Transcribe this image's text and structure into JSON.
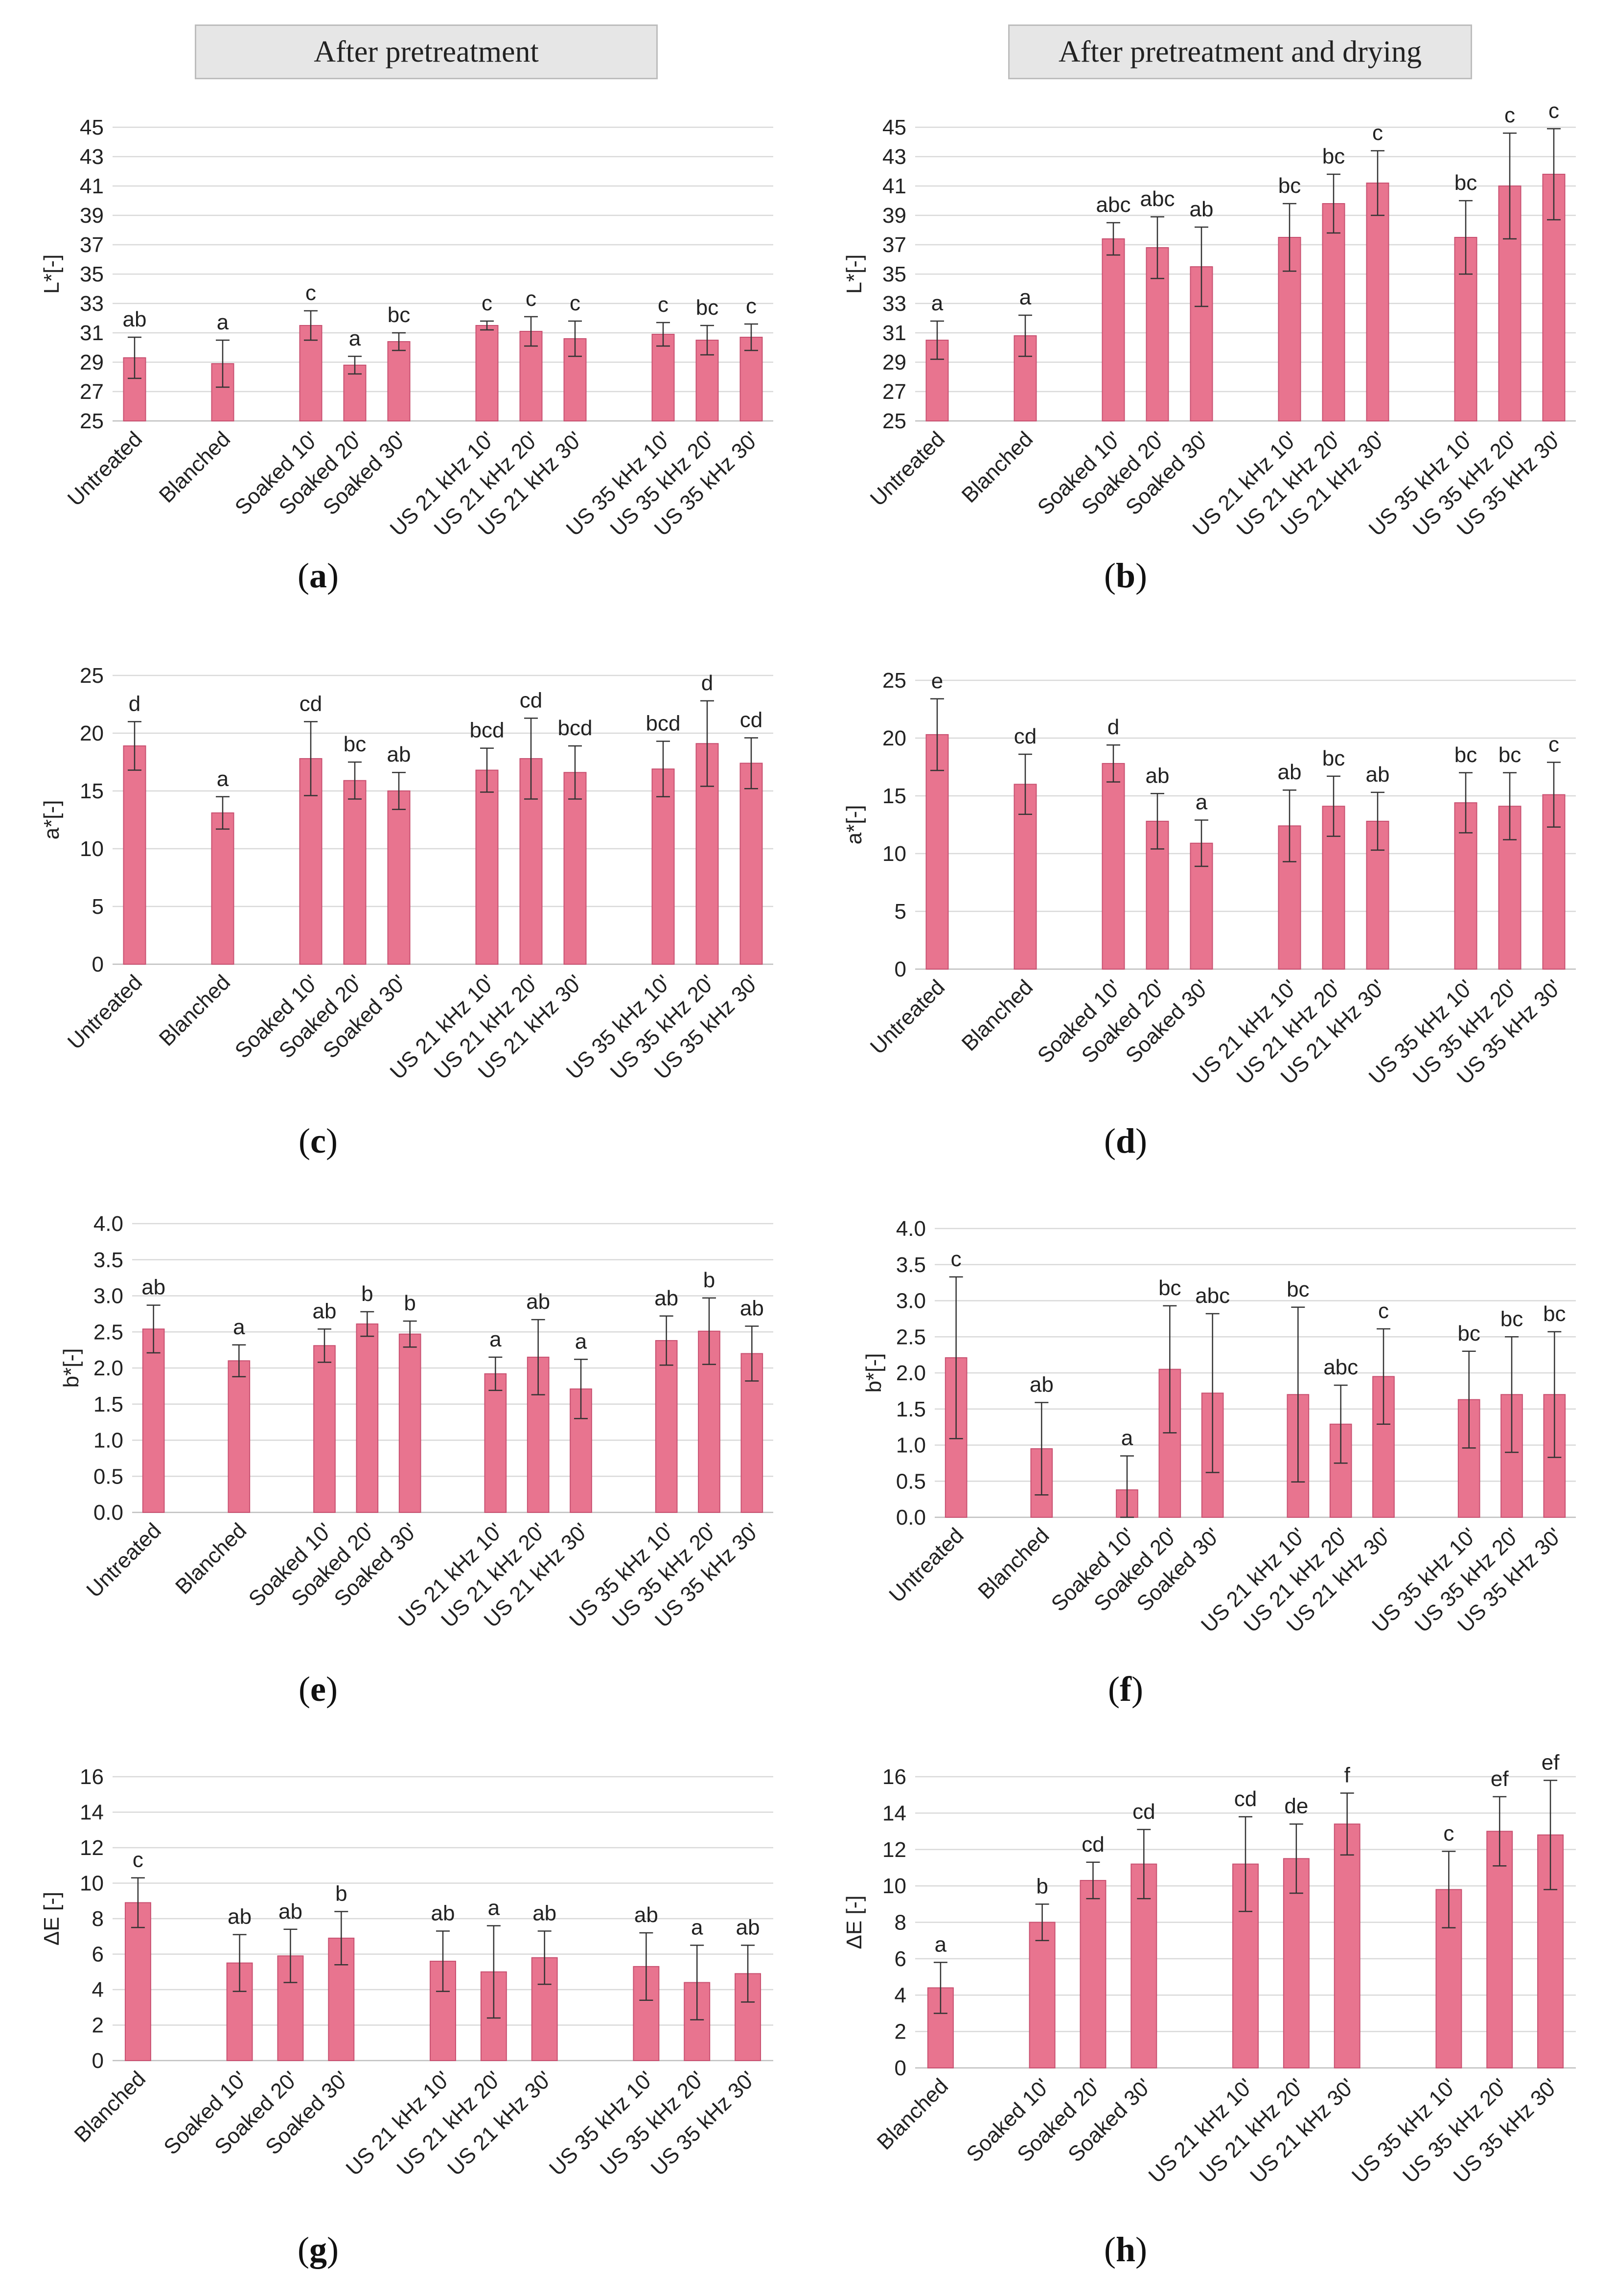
{
  "headers": {
    "left": "After pretreatment",
    "right": "After pretreatment and drying"
  },
  "style": {
    "bar_color": "#e8748f",
    "bar_stroke": "#c85070",
    "grid_color": "#d9d9d9",
    "axis_color": "#bfbfbf"
  },
  "chart_data": [
    {
      "id": "a",
      "type": "bar",
      "panel_label": "a",
      "ylabel": "L*[-]",
      "ylim": [
        25,
        45
      ],
      "yticks": [
        25,
        27,
        29,
        31,
        33,
        35,
        37,
        39,
        41,
        43,
        45
      ],
      "categories": [
        "Untreated",
        "Blanched",
        "Soaked 10'",
        "Soaked 20'",
        "Soaked 30'",
        "US 21 kHz 10'",
        "US 21 kHz 20'",
        "US 21 kHz 30'",
        "US 35 kHz 10'",
        "US 35 kHz 20'",
        "US 35 kHz 30'"
      ],
      "groups": [
        [
          0
        ],
        [
          1
        ],
        [
          2,
          3,
          4
        ],
        [
          5,
          6,
          7
        ],
        [
          8,
          9,
          10
        ]
      ],
      "values": [
        29.3,
        28.9,
        31.5,
        28.8,
        30.4,
        31.5,
        31.1,
        30.6,
        30.9,
        30.5,
        30.7
      ],
      "errors": [
        1.4,
        1.6,
        1.0,
        0.6,
        0.6,
        0.3,
        1.0,
        1.2,
        0.8,
        1.0,
        0.9
      ],
      "letters": [
        "ab",
        "a",
        "c",
        "a",
        "bc",
        "c",
        "c",
        "c",
        "c",
        "bc",
        "c"
      ]
    },
    {
      "id": "b",
      "type": "bar",
      "panel_label": "b",
      "ylabel": "L*[-]",
      "ylim": [
        25,
        45
      ],
      "yticks": [
        25,
        27,
        29,
        31,
        33,
        35,
        37,
        39,
        41,
        43,
        45
      ],
      "categories": [
        "Untreated",
        "Blanched",
        "Soaked 10'",
        "Soaked 20'",
        "Soaked 30'",
        "US 21 kHz 10'",
        "US 21 kHz 20'",
        "US 21 kHz 30'",
        "US 35 kHz 10'",
        "US 35 kHz 20'",
        "US 35 kHz 30'"
      ],
      "groups": [
        [
          0
        ],
        [
          1
        ],
        [
          2,
          3,
          4
        ],
        [
          5,
          6,
          7
        ],
        [
          8,
          9,
          10
        ]
      ],
      "values": [
        30.5,
        30.8,
        37.4,
        36.8,
        35.5,
        37.5,
        39.8,
        41.2,
        37.5,
        41.0,
        41.8
      ],
      "errors": [
        1.3,
        1.4,
        1.1,
        2.1,
        2.7,
        2.3,
        2.0,
        2.2,
        2.5,
        3.6,
        3.1
      ],
      "letters": [
        "a",
        "a",
        "abc",
        "abc",
        "ab",
        "bc",
        "bc",
        "c",
        "bc",
        "c",
        "c"
      ]
    },
    {
      "id": "c",
      "type": "bar",
      "panel_label": "c",
      "ylabel": "a*[-]",
      "ylim": [
        0,
        25
      ],
      "yticks": [
        0,
        5,
        10,
        15,
        20,
        25
      ],
      "categories": [
        "Untreated",
        "Blanched",
        "Soaked 10'",
        "Soaked 20'",
        "Soaked 30'",
        "US 21 kHz 10'",
        "US 21 kHz 20'",
        "US 21 kHz 30'",
        "US 35 kHz 10'",
        "US 35 kHz 20'",
        "US 35 kHz 30'"
      ],
      "groups": [
        [
          0
        ],
        [
          1
        ],
        [
          2,
          3,
          4
        ],
        [
          5,
          6,
          7
        ],
        [
          8,
          9,
          10
        ]
      ],
      "values": [
        18.9,
        13.1,
        17.8,
        15.9,
        15.0,
        16.8,
        17.8,
        16.6,
        16.9,
        19.1,
        17.4
      ],
      "errors": [
        2.1,
        1.4,
        3.2,
        1.6,
        1.6,
        1.9,
        3.5,
        2.3,
        2.4,
        3.7,
        2.2
      ],
      "letters": [
        "d",
        "a",
        "cd",
        "bc",
        "ab",
        "bcd",
        "cd",
        "bcd",
        "bcd",
        "d",
        "cd"
      ]
    },
    {
      "id": "d",
      "type": "bar",
      "panel_label": "d",
      "ylabel": "a*[-]",
      "ylim": [
        0,
        25
      ],
      "yticks": [
        0,
        5,
        10,
        15,
        20,
        25
      ],
      "categories": [
        "Untreated",
        "Blanched",
        "Soaked 10'",
        "Soaked 20'",
        "Soaked 30'",
        "US 21 kHz 10'",
        "US 21 kHz 20'",
        "US 21 kHz 30'",
        "US 35 kHz 10'",
        "US 35 kHz 20'",
        "US 35 kHz 30'"
      ],
      "groups": [
        [
          0
        ],
        [
          1
        ],
        [
          2,
          3,
          4
        ],
        [
          5,
          6,
          7
        ],
        [
          8,
          9,
          10
        ]
      ],
      "values": [
        20.3,
        16.0,
        17.8,
        12.8,
        10.9,
        12.4,
        14.1,
        12.8,
        14.4,
        14.1,
        15.1
      ],
      "errors": [
        3.1,
        2.6,
        1.6,
        2.4,
        2.0,
        3.1,
        2.6,
        2.5,
        2.6,
        2.9,
        2.8
      ],
      "letters": [
        "e",
        "cd",
        "d",
        "ab",
        "a",
        "ab",
        "bc",
        "ab",
        "bc",
        "bc",
        "c"
      ]
    },
    {
      "id": "e",
      "type": "bar",
      "panel_label": "e",
      "ylabel": "b*[-]",
      "ylim": [
        0,
        4
      ],
      "yticks": [
        "0.0",
        "0.5",
        "1.0",
        "1.5",
        "2.0",
        "2.5",
        "3.0",
        "3.5",
        "4.0"
      ],
      "categories": [
        "Untreated",
        "Blanched",
        "Soaked 10'",
        "Soaked 20'",
        "Soaked 30'",
        "US 21 kHz 10'",
        "US 21 kHz 20'",
        "US 21 kHz 30'",
        "US 35 kHz 10'",
        "US 35 kHz 20'",
        "US 35 kHz 30'"
      ],
      "groups": [
        [
          0
        ],
        [
          1
        ],
        [
          2,
          3,
          4
        ],
        [
          5,
          6,
          7
        ],
        [
          8,
          9,
          10
        ]
      ],
      "values": [
        2.54,
        2.1,
        2.31,
        2.61,
        2.47,
        1.92,
        2.15,
        1.71,
        2.38,
        2.51,
        2.2
      ],
      "errors": [
        0.33,
        0.22,
        0.23,
        0.17,
        0.18,
        0.23,
        0.52,
        0.41,
        0.34,
        0.46,
        0.38
      ],
      "letters": [
        "ab",
        "a",
        "ab",
        "b",
        "b",
        "a",
        "ab",
        "a",
        "ab",
        "b",
        "ab"
      ]
    },
    {
      "id": "f",
      "type": "bar",
      "panel_label": "f",
      "ylabel": "b*[-]",
      "ylim": [
        0,
        4
      ],
      "yticks": [
        "0.0",
        "0.5",
        "1.0",
        "1.5",
        "2.0",
        "2.5",
        "3.0",
        "3.5",
        "4.0"
      ],
      "categories": [
        "Untreated",
        "Blanched",
        "Soaked 10'",
        "Soaked 20'",
        "Soaked 30'",
        "US 21 kHz 10'",
        "US 21 kHz 20'",
        "US 21 kHz 30'",
        "US 35 kHz 10'",
        "US 35 kHz 20'",
        "US 35 kHz 30'"
      ],
      "groups": [
        [
          0
        ],
        [
          1
        ],
        [
          2,
          3,
          4
        ],
        [
          5,
          6,
          7
        ],
        [
          8,
          9,
          10
        ]
      ],
      "values": [
        2.21,
        0.95,
        0.38,
        2.05,
        1.72,
        1.7,
        1.29,
        1.95,
        1.63,
        1.7,
        1.7
      ],
      "errors": [
        1.12,
        0.64,
        0.47,
        0.88,
        1.1,
        1.21,
        0.54,
        0.66,
        0.67,
        0.8,
        0.87
      ],
      "letters": [
        "c",
        "ab",
        "a",
        "bc",
        "abc",
        "bc",
        "abc",
        "c",
        "bc",
        "bc",
        "bc"
      ]
    },
    {
      "id": "g",
      "type": "bar",
      "panel_label": "g",
      "ylabel": "ΔE [-]",
      "ylim": [
        0,
        16
      ],
      "yticks": [
        0,
        2,
        4,
        6,
        8,
        10,
        12,
        14,
        16
      ],
      "categories": [
        "Blanched",
        "Soaked 10'",
        "Soaked 20'",
        "Soaked 30'",
        "US 21 kHz 10'",
        "US 21 kHz 20'",
        "US 21 kHz 30'",
        "US 35 kHz 10'",
        "US 35 kHz 20'",
        "US 35 kHz 30'"
      ],
      "groups": [
        [
          0
        ],
        [
          1,
          2,
          3
        ],
        [
          4,
          5,
          6
        ],
        [
          7,
          8,
          9
        ]
      ],
      "values": [
        8.9,
        5.5,
        5.9,
        6.9,
        5.6,
        5.0,
        5.8,
        5.3,
        4.4,
        4.9
      ],
      "errors": [
        1.4,
        1.6,
        1.5,
        1.5,
        1.7,
        2.6,
        1.5,
        1.9,
        2.1,
        1.6
      ],
      "letters": [
        "c",
        "ab",
        "ab",
        "b",
        "ab",
        "a",
        "ab",
        "ab",
        "a",
        "ab"
      ]
    },
    {
      "id": "h",
      "type": "bar",
      "panel_label": "h",
      "ylabel": "ΔE [-]",
      "ylim": [
        0,
        16
      ],
      "yticks": [
        0,
        2,
        4,
        6,
        8,
        10,
        12,
        14,
        16
      ],
      "categories": [
        "Blanched",
        "Soaked 10'",
        "Soaked 20'",
        "Soaked 30'",
        "US 21 kHz 10'",
        "US 21 kHz 20'",
        "US 21 kHz 30'",
        "US 35 kHz 10'",
        "US 35 kHz 20'",
        "US 35 kHz 30'"
      ],
      "groups": [
        [
          0
        ],
        [
          1,
          2,
          3
        ],
        [
          4,
          5,
          6
        ],
        [
          7,
          8,
          9
        ]
      ],
      "values": [
        4.4,
        8.0,
        10.3,
        11.2,
        11.2,
        11.5,
        13.4,
        9.8,
        13.0,
        12.8
      ],
      "errors": [
        1.4,
        1.0,
        1.0,
        1.9,
        2.6,
        1.9,
        1.7,
        2.1,
        1.9,
        3.0
      ],
      "letters": [
        "a",
        "b",
        "cd",
        "cd",
        "cd",
        "de",
        "f",
        "c",
        "ef",
        "ef"
      ]
    }
  ]
}
